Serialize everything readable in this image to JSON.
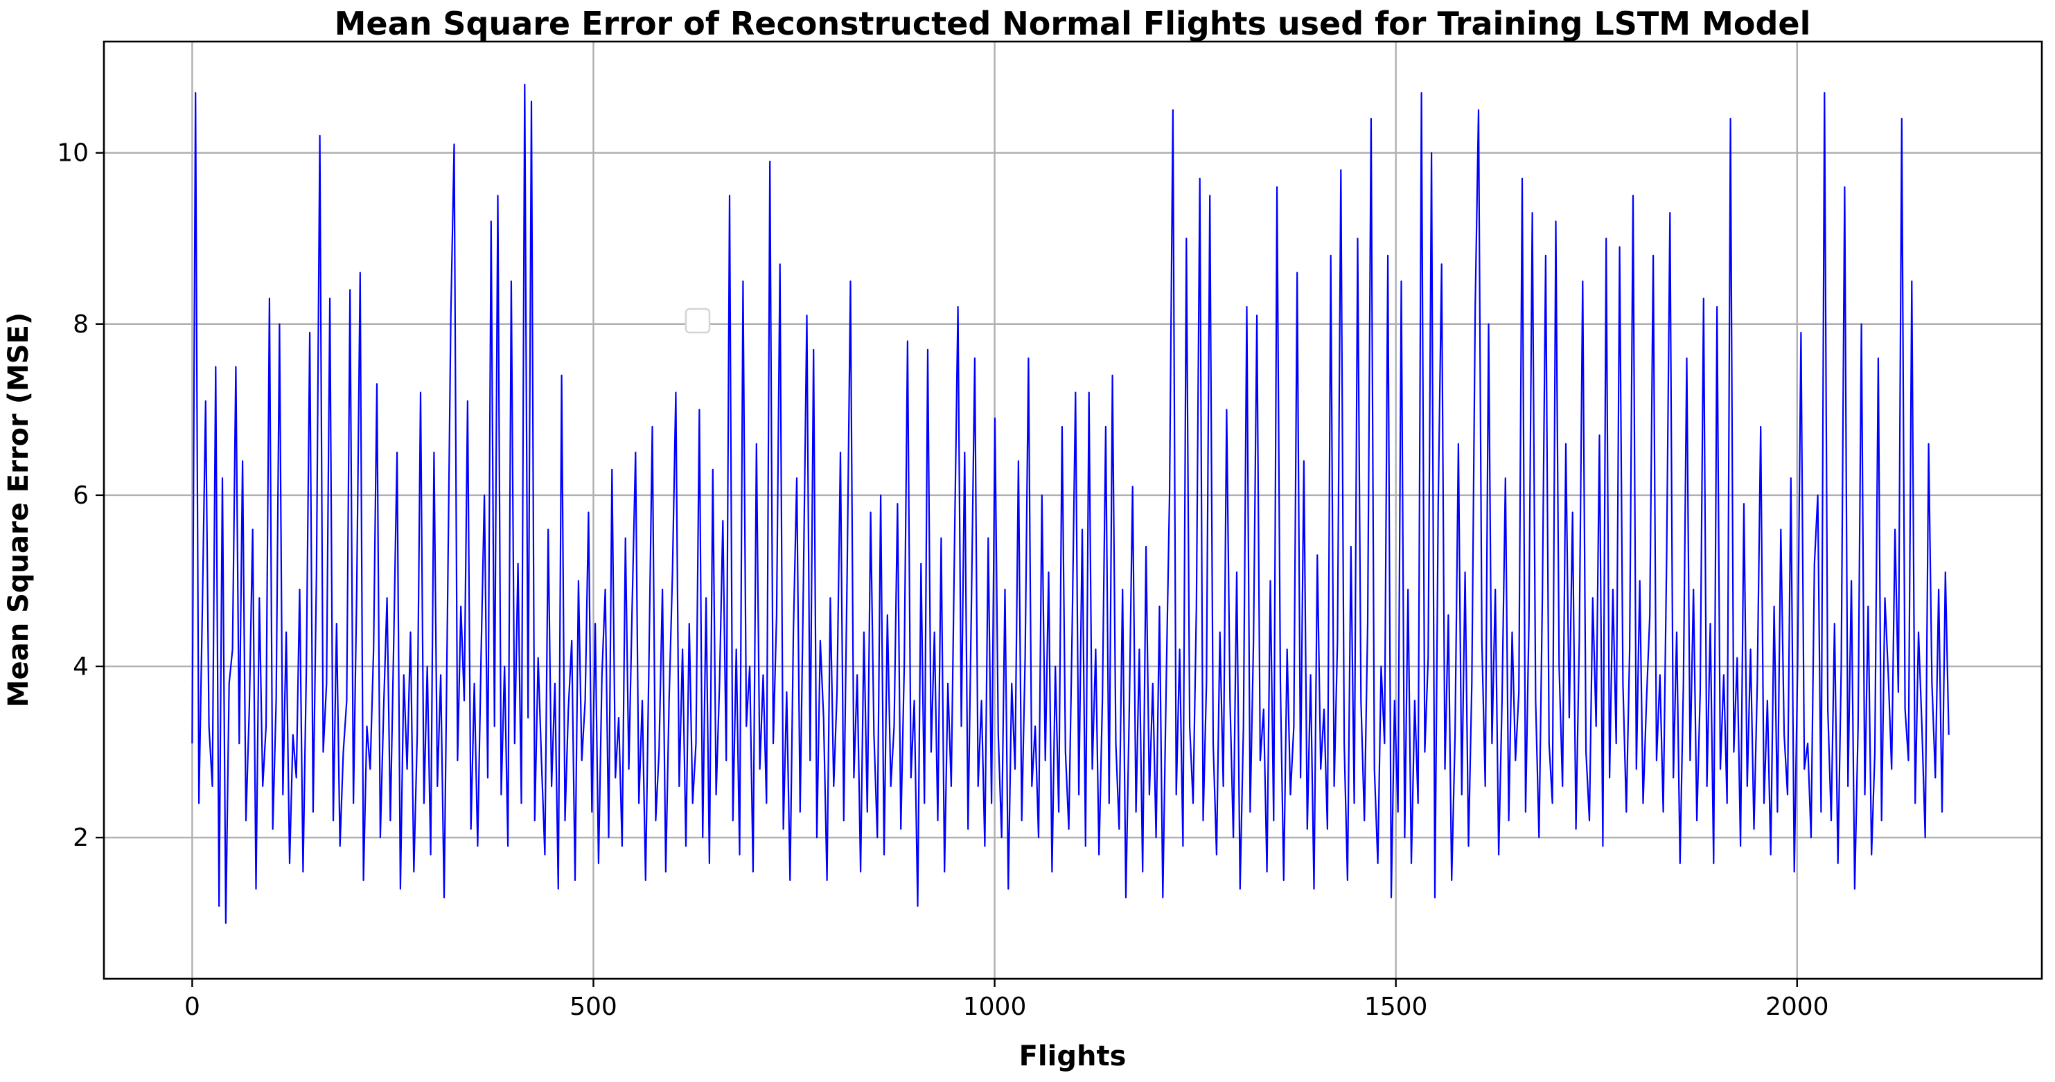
{
  "chart_data": {
    "type": "line",
    "title": "Mean Square Error of Reconstructed Normal Flights used for Training LSTM Model",
    "xlabel": "Flights",
    "ylabel": "Mean Square Error (MSE)",
    "xlim": [
      -110,
      2305
    ],
    "ylim": [
      0.35,
      11.3
    ],
    "x_ticks": [
      0,
      500,
      1000,
      1500,
      2000
    ],
    "x_tick_labels": [
      "0",
      "500",
      "1000",
      "1500",
      "2000"
    ],
    "y_ticks": [
      2,
      4,
      6,
      8,
      10
    ],
    "y_tick_labels": [
      "2",
      "4",
      "6",
      "8",
      "10"
    ],
    "grid": true,
    "legend": "empty legend box near top-center",
    "series": [
      {
        "color": "#0000ff",
        "n_points": 2190,
        "x_range": [
          0,
          2189
        ],
        "sampled_every": 5,
        "values": [
          3.1,
          10.7,
          2.4,
          4.6,
          7.1,
          3.3,
          2.6,
          7.5,
          1.2,
          6.2,
          1.0,
          3.8,
          4.2,
          7.5,
          3.1,
          6.4,
          2.2,
          3.5,
          5.6,
          1.4,
          4.8,
          2.6,
          3.3,
          8.3,
          2.1,
          3.6,
          8.0,
          2.5,
          4.4,
          1.7,
          3.2,
          2.7,
          4.9,
          1.6,
          4.0,
          7.9,
          2.3,
          5.1,
          10.2,
          3.0,
          3.8,
          8.3,
          2.2,
          4.5,
          1.9,
          3.0,
          3.6,
          8.4,
          2.4,
          4.9,
          8.6,
          1.5,
          3.3,
          2.8,
          4.2,
          7.3,
          2.0,
          3.5,
          4.8,
          2.2,
          4.3,
          6.5,
          1.4,
          3.9,
          2.8,
          4.4,
          1.6,
          3.2,
          7.2,
          2.4,
          4.0,
          1.8,
          6.5,
          2.6,
          3.9,
          1.3,
          4.6,
          8.1,
          10.1,
          2.9,
          4.7,
          3.6,
          7.1,
          2.1,
          3.8,
          1.9,
          4.1,
          6.0,
          2.7,
          9.2,
          3.3,
          9.5,
          2.5,
          4.0,
          1.9,
          8.5,
          3.1,
          5.2,
          2.4,
          10.8,
          3.4,
          10.6,
          2.2,
          4.1,
          2.9,
          1.8,
          5.6,
          2.6,
          3.8,
          1.4,
          7.4,
          2.2,
          3.5,
          4.3,
          1.5,
          5.0,
          2.9,
          3.6,
          5.8,
          2.3,
          4.5,
          1.7,
          3.9,
          4.9,
          2.0,
          6.3,
          2.7,
          3.4,
          1.9,
          5.5,
          2.8,
          4.7,
          6.5,
          2.4,
          3.6,
          1.5,
          4.1,
          6.8,
          2.2,
          3.0,
          4.9,
          1.6,
          3.6,
          5.1,
          7.2,
          2.6,
          4.2,
          1.9,
          4.5,
          2.4,
          3.1,
          7.0,
          2.0,
          4.8,
          1.7,
          6.3,
          2.5,
          3.8,
          5.7,
          2.9,
          9.5,
          2.2,
          4.2,
          1.8,
          8.5,
          3.3,
          4.0,
          1.6,
          6.6,
          2.8,
          3.9,
          2.4,
          9.9,
          3.1,
          4.6,
          8.7,
          2.1,
          3.7,
          1.5,
          4.4,
          6.2,
          2.3,
          5.0,
          8.1,
          2.9,
          7.7,
          2.0,
          4.3,
          3.4,
          1.5,
          4.8,
          2.6,
          3.7,
          6.5,
          2.2,
          5.1,
          8.5,
          2.7,
          3.9,
          1.6,
          4.4,
          2.3,
          5.8,
          3.2,
          2.0,
          6.0,
          1.8,
          4.6,
          2.6,
          3.3,
          5.9,
          2.1,
          4.0,
          7.8,
          2.7,
          3.6,
          1.2,
          5.2,
          2.4,
          7.7,
          3.0,
          4.4,
          2.2,
          5.5,
          1.6,
          3.8,
          2.6,
          5.5,
          8.2,
          3.3,
          6.5,
          2.1,
          4.7,
          7.6,
          2.6,
          3.6,
          1.9,
          5.5,
          2.4,
          6.9,
          3.2,
          2.0,
          4.9,
          1.4,
          3.8,
          2.8,
          6.4,
          2.2,
          4.1,
          7.6,
          2.6,
          3.3,
          2.0,
          6.0,
          2.9,
          5.1,
          1.6,
          4.0,
          2.3,
          6.8,
          3.0,
          2.1,
          4.4,
          7.2,
          2.5,
          5.6,
          1.9,
          7.2,
          2.8,
          4.2,
          1.8,
          3.6,
          6.8,
          2.4,
          7.4,
          3.1,
          2.1,
          4.9,
          1.3,
          3.5,
          6.1,
          2.3,
          4.2,
          1.6,
          5.4,
          2.5,
          3.8,
          2.0,
          4.7,
          1.3,
          3.8,
          6.0,
          10.5,
          2.5,
          4.2,
          1.9,
          9.0,
          3.3,
          2.4,
          4.7,
          9.7,
          2.2,
          3.8,
          9.5,
          3.1,
          1.8,
          4.4,
          2.6,
          7.0,
          3.6,
          2.0,
          5.1,
          1.4,
          3.3,
          8.2,
          2.3,
          4.3,
          8.1,
          2.9,
          3.5,
          1.6,
          5.0,
          2.2,
          9.6,
          3.8,
          1.5,
          4.2,
          2.5,
          3.3,
          8.6,
          2.7,
          6.4,
          2.1,
          3.9,
          1.4,
          5.3,
          2.8,
          3.5,
          2.1,
          8.8,
          2.6,
          4.3,
          9.8,
          3.1,
          1.5,
          5.4,
          2.4,
          9.0,
          3.6,
          2.2,
          4.5,
          10.4,
          2.8,
          1.7,
          4.0,
          3.1,
          8.8,
          1.3,
          3.6,
          2.3,
          8.5,
          2.0,
          4.9,
          1.7,
          3.6,
          2.4,
          10.7,
          3.0,
          4.1,
          10.0,
          1.3,
          5.9,
          8.7,
          2.8,
          4.6,
          1.5,
          3.2,
          6.6,
          2.5,
          5.1,
          1.9,
          3.8,
          8.2,
          10.5,
          4.3,
          2.6,
          8.0,
          3.1,
          4.9,
          1.8,
          3.6,
          6.2,
          2.2,
          4.4,
          2.9,
          3.7,
          9.7,
          2.3,
          4.5,
          9.3,
          3.6,
          2.0,
          4.8,
          8.8,
          3.1,
          2.4,
          9.2,
          4.0,
          2.6,
          6.6,
          3.4,
          5.8,
          2.1,
          4.3,
          8.5,
          3.0,
          2.2,
          4.8,
          3.3,
          6.7,
          1.9,
          9.0,
          2.7,
          4.9,
          3.1,
          8.9,
          3.8,
          2.3,
          4.2,
          9.5,
          2.8,
          5.0,
          2.4,
          3.6,
          4.6,
          8.8,
          2.9,
          3.9,
          2.3,
          5.3,
          9.3,
          2.7,
          4.4,
          1.7,
          3.8,
          7.6,
          2.9,
          4.9,
          2.2,
          3.7,
          8.3,
          2.6,
          4.5,
          1.7,
          8.2,
          2.8,
          3.9,
          2.4,
          10.4,
          3.0,
          4.1,
          1.9,
          5.9,
          2.6,
          4.2,
          2.1,
          3.8,
          6.8,
          2.4,
          3.6,
          1.8,
          4.7,
          2.3,
          5.6,
          3.2,
          2.5,
          6.2,
          1.6,
          4.0,
          7.9,
          2.8,
          3.1,
          2.0,
          5.2,
          6.0,
          2.3,
          10.7,
          3.5,
          2.2,
          4.5,
          1.7,
          4.0,
          9.6,
          2.6,
          5.0,
          1.4,
          3.3,
          8.0,
          2.5,
          4.7,
          1.8,
          3.0,
          7.6,
          2.2,
          4.8,
          3.9,
          2.8,
          5.6,
          3.7,
          10.4,
          3.5,
          2.9,
          8.5,
          2.4,
          4.4,
          3.3,
          2.0,
          6.6,
          3.8,
          2.7,
          4.9,
          2.3,
          5.1,
          3.2
        ]
      }
    ]
  }
}
